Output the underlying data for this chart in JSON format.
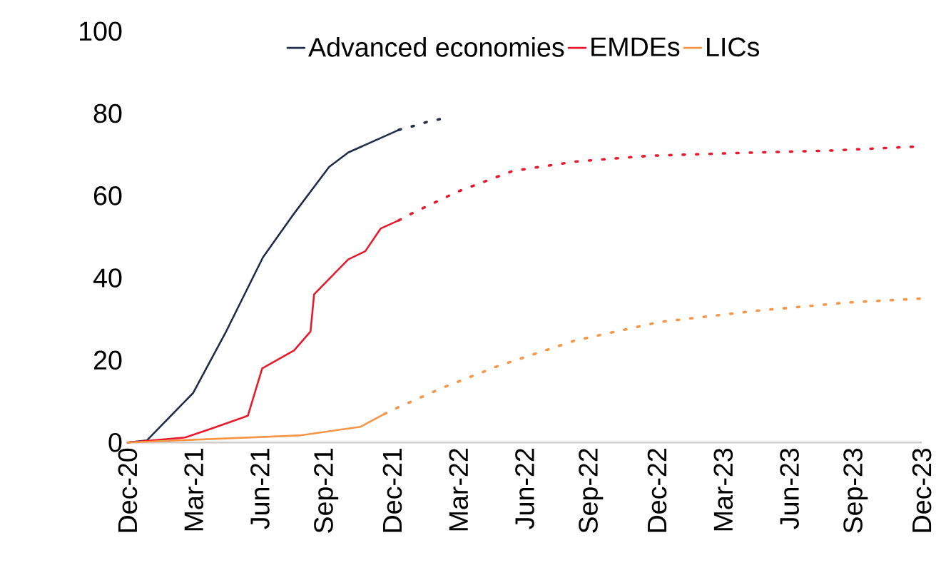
{
  "chart_data": {
    "type": "line",
    "legend": "top",
    "series": [
      {
        "name": "Advanced economies",
        "color": "#1f2d4a",
        "line_style": "solid",
        "x": [
          "2020-12-01",
          "2020-12-28",
          "2021-02-28",
          "2021-04-15",
          "2021-06-05",
          "2021-07-15",
          "2021-09-05",
          "2021-10-01",
          "2021-12-10"
        ],
        "values": [
          0,
          0.5,
          12,
          27,
          45,
          55,
          67,
          70.5,
          76
        ]
      },
      {
        "name": "EMDEs",
        "color": "#e8192c",
        "line_style": "solid",
        "x": [
          "2020-12-01",
          "2021-02-18",
          "2021-03-28",
          "2021-05-15",
          "2021-06-04",
          "2021-07-18",
          "2021-08-10",
          "2021-08-15",
          "2021-10-01",
          "2021-10-25",
          "2021-11-15",
          "2021-12-10"
        ],
        "values": [
          0,
          1.2,
          3.5,
          6.5,
          18,
          22.4,
          27,
          36,
          44.5,
          46.5,
          52,
          54
        ]
      },
      {
        "name": "LICs",
        "color": "#f79646",
        "line_style": "solid",
        "x": [
          "2020-12-01",
          "2021-07-25",
          "2021-10-18",
          "2021-11-20"
        ],
        "values": [
          0,
          1.7,
          3.8,
          6.9
        ]
      },
      {
        "color": "#1f2d4a",
        "line_style": "dotted",
        "x": [
          "2021-12-10",
          "2022-01-01",
          "2022-01-20",
          "2022-02-15"
        ],
        "values": [
          76,
          77,
          78,
          79
        ]
      },
      {
        "color": "#e8192c",
        "line_style": "dotted",
        "x": [
          "2021-12-10",
          "2022-01-01",
          "2022-02-28",
          "2022-05-15",
          "2022-08-10",
          "2022-11-20",
          "2023-03-05",
          "2023-07-31",
          "2023-12-01"
        ],
        "values": [
          54,
          56,
          61,
          66,
          68.3,
          69.7,
          70.3,
          71,
          72
        ]
      },
      {
        "color": "#f79646",
        "line_style": "dotted",
        "x": [
          "2021-11-20",
          "2021-12-10",
          "2022-02-10",
          "2022-04-25",
          "2022-08-10",
          "2022-12-05",
          "2023-04-15",
          "2023-08-18",
          "2023-12-01"
        ],
        "values": [
          6.9,
          8.6,
          13.4,
          18.6,
          24.8,
          29.3,
          32,
          34,
          35
        ]
      }
    ],
    "xlim": [
      "2020-12",
      "2023-12"
    ],
    "xticks": [
      {
        "value": "2020-12",
        "label": "Dec-20"
      },
      {
        "value": "2021-03",
        "label": "Mar-21"
      },
      {
        "value": "2021-06",
        "label": "Jun-21"
      },
      {
        "value": "2021-09",
        "label": "Sep-21"
      },
      {
        "value": "2021-12",
        "label": "Dec-21"
      },
      {
        "value": "2022-03",
        "label": "Mar-22"
      },
      {
        "value": "2022-06",
        "label": "Jun-22"
      },
      {
        "value": "2022-09",
        "label": "Sep-22"
      },
      {
        "value": "2022-12",
        "label": "Dec-22"
      },
      {
        "value": "2023-03",
        "label": "Mar-23"
      },
      {
        "value": "2023-06",
        "label": "Jun-23"
      },
      {
        "value": "2023-09",
        "label": "Sep-23"
      },
      {
        "value": "2023-12",
        "label": "Dec-23"
      }
    ],
    "ylim": [
      0,
      100
    ],
    "yticks": [
      0,
      20,
      40,
      60,
      80,
      100
    ]
  }
}
